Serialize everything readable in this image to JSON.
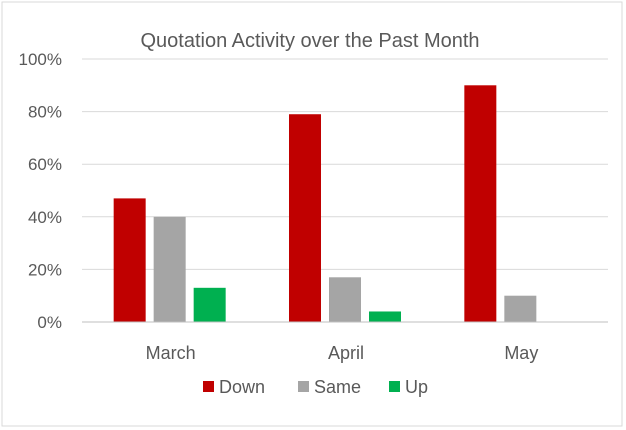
{
  "chart_data": {
    "type": "bar",
    "title": "Quotation Activity over the Past Month",
    "xlabel": "",
    "ylabel": "",
    "categories": [
      "March",
      "April",
      "May"
    ],
    "series": [
      {
        "name": "Down",
        "color": "#c00000",
        "values": [
          0.47,
          0.79,
          0.9
        ]
      },
      {
        "name": "Same",
        "color": "#a5a5a5",
        "values": [
          0.4,
          0.17,
          0.1
        ]
      },
      {
        "name": "Up",
        "color": "#00b050",
        "values": [
          0.13,
          0.04,
          0.0
        ]
      }
    ],
    "ylim": [
      0,
      1
    ],
    "y_ticks": [
      {
        "value": 0,
        "label": "0%"
      },
      {
        "value": 0.2,
        "label": "20%"
      },
      {
        "value": 0.4,
        "label": "40%"
      },
      {
        "value": 0.6,
        "label": "60%"
      },
      {
        "value": 0.8,
        "label": "80%"
      },
      {
        "value": 1.0,
        "label": "100%"
      }
    ],
    "grid": true,
    "legend_position": "bottom",
    "colors": {
      "gridline": "#d9d9d9",
      "axis": "#bfbfbf",
      "text": "#595959",
      "border": "#d9d9d9"
    }
  }
}
